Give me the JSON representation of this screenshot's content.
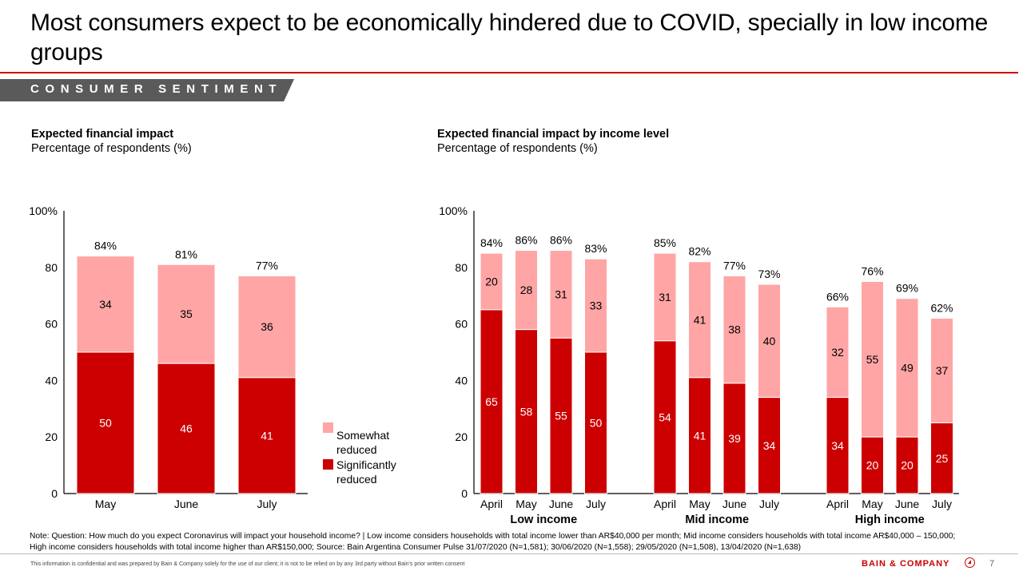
{
  "header": {
    "title": "Most consumers expect to be economically hindered due to COVID, specially in low income groups",
    "section_tag": "CONSUMER SENTIMENT"
  },
  "colors": {
    "significantly": "#cc0000",
    "somewhat": "#ffa5a5",
    "accent": "#cc0000",
    "tag_bg": "#5a5a5a"
  },
  "left_panel": {
    "title": "Expected financial impact",
    "subtitle": "Percentage of respondents (%)"
  },
  "right_panel": {
    "title": "Expected financial impact by income level",
    "subtitle": "Percentage of respondents (%)"
  },
  "chart_data": [
    {
      "type": "bar",
      "stacked": true,
      "title": "Expected financial impact",
      "ylabel": "Percentage of respondents (%)",
      "ylim": [
        0,
        100
      ],
      "yticks": [
        "0",
        "20",
        "40",
        "60",
        "80",
        "100%"
      ],
      "categories": [
        "May",
        "June",
        "July"
      ],
      "series": [
        {
          "name": "Significantly reduced",
          "values": [
            50,
            46,
            41
          ]
        },
        {
          "name": "Somewhat reduced",
          "values": [
            34,
            35,
            36
          ]
        }
      ],
      "totals": [
        "84%",
        "81%",
        "77%"
      ],
      "legend": [
        "Somewhat reduced",
        "Significantly reduced"
      ],
      "legend_position": "right",
      "grid": false
    },
    {
      "type": "bar",
      "stacked": true,
      "title": "Expected financial impact by income level",
      "ylabel": "Percentage of respondents (%)",
      "ylim": [
        0,
        100
      ],
      "yticks": [
        "0",
        "20",
        "40",
        "60",
        "80",
        "100%"
      ],
      "groups": [
        {
          "name": "Low income",
          "categories": [
            "April",
            "May",
            "June",
            "July"
          ],
          "significantly": [
            65,
            58,
            55,
            50
          ],
          "somewhat": [
            20,
            28,
            31,
            33
          ],
          "totals": [
            "84%",
            "86%",
            "86%",
            "83%"
          ]
        },
        {
          "name": "Mid income",
          "categories": [
            "April",
            "May",
            "June",
            "July"
          ],
          "significantly": [
            54,
            41,
            39,
            34
          ],
          "somewhat": [
            31,
            41,
            38,
            40
          ],
          "totals": [
            "85%",
            "82%",
            "77%",
            "73%"
          ]
        },
        {
          "name": "High income",
          "categories": [
            "April",
            "May",
            "June",
            "July"
          ],
          "significantly": [
            34,
            20,
            20,
            25
          ],
          "somewhat": [
            32,
            55,
            49,
            37
          ],
          "totals": [
            "66%",
            "76%",
            "69%",
            "62%"
          ]
        }
      ],
      "grid": false
    }
  ],
  "footer": {
    "note_line1": "Note: Question: How much do you expect Coronavirus will impact your household income? | Low income considers households with total income lower than AR$40,000 per month; Mid income considers households with total income AR$40,000 – 150,000;",
    "note_line2": "High income considers households with total income higher than AR$150,000; Source: Bain Argentina Consumer Pulse 31/07/2020 (N=1,581); 30/06/2020 (N=1,558); 29/05/2020 (N=1,508), 13/04/2020 (N=1,638)",
    "confidential": "This information is confidential and was prepared by Bain & Company solely for the use of our client; it is not to be relied on by any 3rd party without Bain's prior written consent",
    "brand": "BAIN & COMPANY",
    "brand_icon": "bain-logo-icon",
    "page_number": "7"
  }
}
